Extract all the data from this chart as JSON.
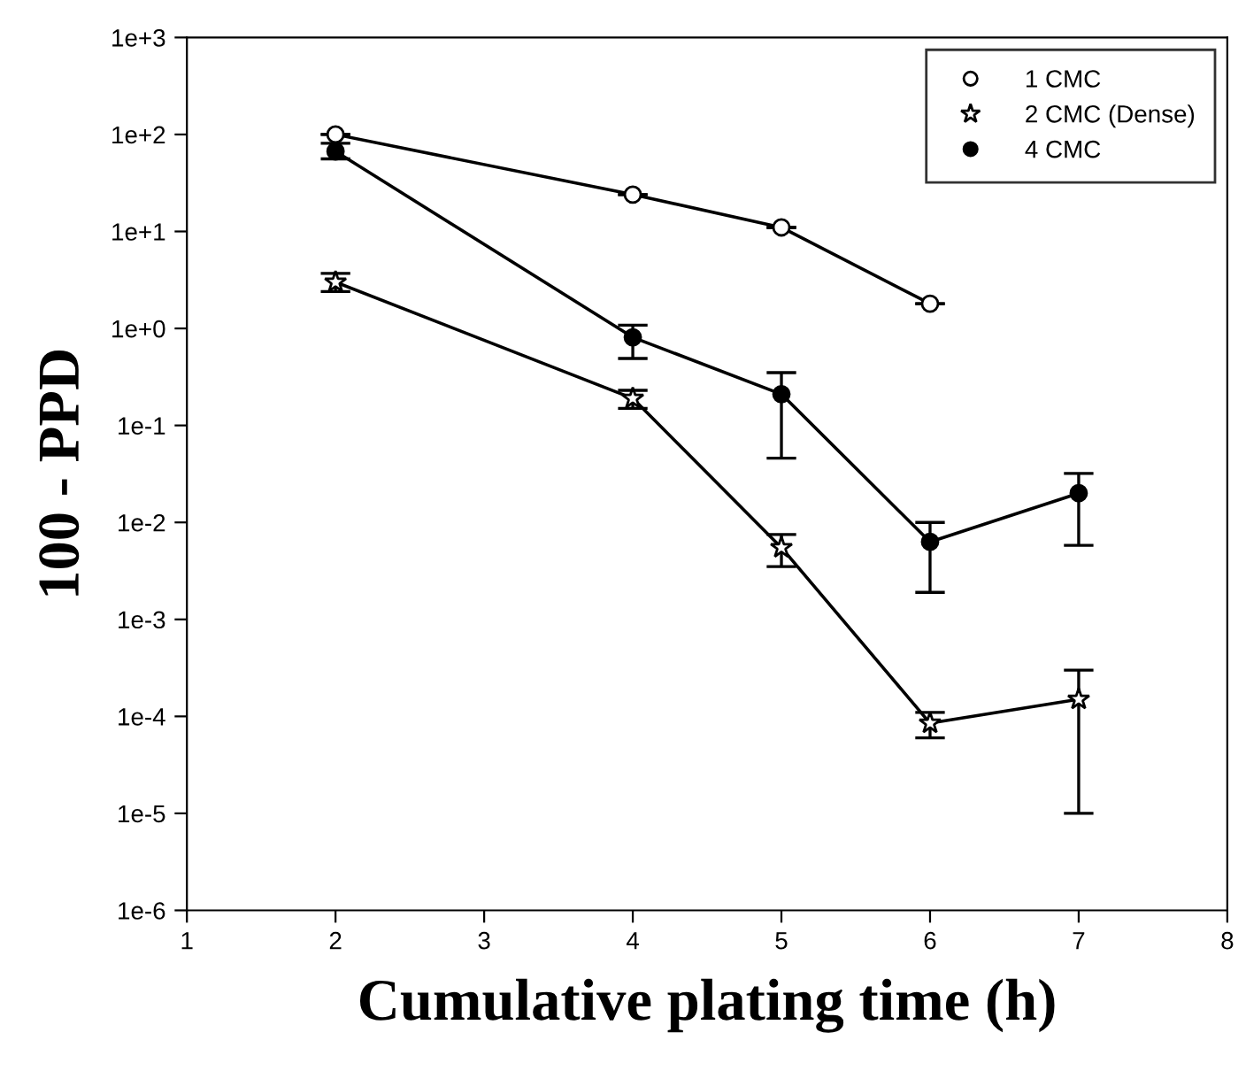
{
  "chart_data": {
    "type": "line",
    "xlabel": "Cumulative plating time (h)",
    "ylabel": "100 - PPD",
    "log": "y",
    "xlim": [
      1,
      8
    ],
    "xticks": [
      1,
      2,
      3,
      4,
      5,
      6,
      7,
      8
    ],
    "ylim": [
      1e-06,
      1000
    ],
    "yticks": [
      {
        "value": 1e-06,
        "label": "1e-6"
      },
      {
        "value": 1e-05,
        "label": "1e-5"
      },
      {
        "value": 0.0001,
        "label": "1e-4"
      },
      {
        "value": 0.001,
        "label": "1e-3"
      },
      {
        "value": 0.01,
        "label": "1e-2"
      },
      {
        "value": 0.1,
        "label": "1e-1"
      },
      {
        "value": 1,
        "label": "1e+0"
      },
      {
        "value": 10,
        "label": "1e+1"
      },
      {
        "value": 100,
        "label": "1e+2"
      },
      {
        "value": 1000,
        "label": "1e+3"
      }
    ],
    "grid": false,
    "legend": "top right",
    "line_style": "solid",
    "series": [
      {
        "name": "1 CMC",
        "color": "#000000",
        "marker": "circle",
        "x": [
          2,
          4,
          5,
          6
        ],
        "values": [
          100,
          24,
          11,
          1.8
        ],
        "errors": [
          null,
          null,
          null,
          null
        ]
      },
      {
        "name": "2 CMC (Dense)",
        "color": "#000000",
        "marker": "star",
        "x": [
          2,
          4,
          5,
          6,
          7
        ],
        "values": [
          3.0,
          0.19,
          0.0055,
          8.5e-05,
          0.00015
        ],
        "errors": [
          [
            2.4,
            3.7
          ],
          [
            0.15,
            0.23
          ],
          [
            0.0035,
            0.0075
          ],
          [
            6e-05,
            0.00011
          ],
          [
            1e-05,
            0.0003
          ]
        ]
      },
      {
        "name": "4 CMC",
        "color": "#000000",
        "marker": "circle",
        "x": [
          2,
          4,
          5,
          6,
          7
        ],
        "values": [
          67,
          0.81,
          0.21,
          0.0063,
          0.02
        ],
        "errors": [
          [
            56,
            81
          ],
          [
            0.49,
            1.08
          ],
          [
            0.046,
            0.35
          ],
          [
            0.0019,
            0.01
          ],
          [
            0.0058,
            0.032
          ]
        ]
      }
    ]
  }
}
